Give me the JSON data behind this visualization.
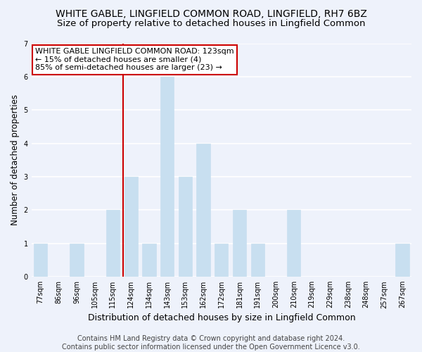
{
  "title": "WHITE GABLE, LINGFIELD COMMON ROAD, LINGFIELD, RH7 6BZ",
  "subtitle": "Size of property relative to detached houses in Lingfield Common",
  "xlabel": "Distribution of detached houses by size in Lingfield Common",
  "ylabel": "Number of detached properties",
  "bin_labels": [
    "77sqm",
    "86sqm",
    "96sqm",
    "105sqm",
    "115sqm",
    "124sqm",
    "134sqm",
    "143sqm",
    "153sqm",
    "162sqm",
    "172sqm",
    "181sqm",
    "191sqm",
    "200sqm",
    "210sqm",
    "219sqm",
    "229sqm",
    "238sqm",
    "248sqm",
    "257sqm",
    "267sqm"
  ],
  "bar_heights": [
    1,
    0,
    1,
    0,
    2,
    3,
    1,
    6,
    3,
    4,
    1,
    2,
    1,
    0,
    2,
    0,
    0,
    0,
    0,
    0,
    1
  ],
  "bar_color": "#c8dff0",
  "bar_edgecolor": "#c8dff0",
  "vline_x_index": 5,
  "vline_color": "#cc0000",
  "ylim": [
    0,
    7
  ],
  "yticks": [
    0,
    1,
    2,
    3,
    4,
    5,
    6,
    7
  ],
  "annotation_lines": [
    "WHITE GABLE LINGFIELD COMMON ROAD: 123sqm",
    "← 15% of detached houses are smaller (4)",
    "85% of semi-detached houses are larger (23) →"
  ],
  "annotation_box_facecolor": "#ffffff",
  "annotation_box_edgecolor": "#cc0000",
  "footer_lines": [
    "Contains HM Land Registry data © Crown copyright and database right 2024.",
    "Contains public sector information licensed under the Open Government Licence v3.0."
  ],
  "background_color": "#eef2fb",
  "plot_bg_color": "#eef2fb",
  "title_fontsize": 10,
  "subtitle_fontsize": 9.5,
  "xlabel_fontsize": 9,
  "ylabel_fontsize": 8.5,
  "tick_fontsize": 7,
  "ann_fontsize": 8,
  "footer_fontsize": 7
}
